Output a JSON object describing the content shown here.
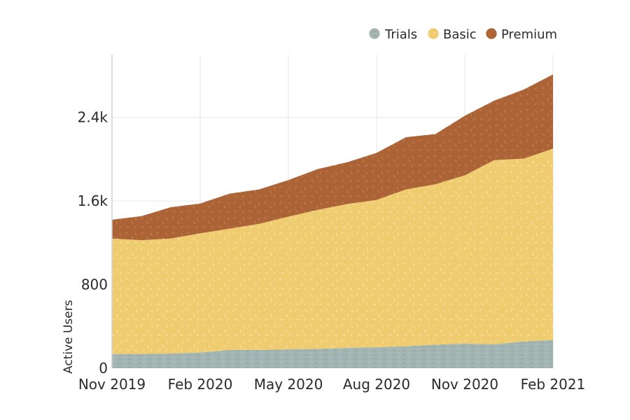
{
  "chart_data": {
    "type": "area",
    "stacked": true,
    "title": "",
    "xlabel": "",
    "ylabel": "Active Users",
    "x": [
      "Nov 2019",
      "Dec 2019",
      "Jan 2020",
      "Feb 2020",
      "Mar 2020",
      "Apr 2020",
      "May 2020",
      "Jun 2020",
      "Jul 2020",
      "Aug 2020",
      "Sep 2020",
      "Oct 2020",
      "Nov 2020",
      "Dec 2020",
      "Jan 2021",
      "Feb 2021"
    ],
    "x_tick_labels": [
      "Nov 2019",
      "Feb 2020",
      "May 2020",
      "Aug 2020",
      "Nov 2020",
      "Feb 2021"
    ],
    "y_tick_labels": [
      "0",
      "800",
      "1.6k",
      "2.4k"
    ],
    "y_ticks": [
      0,
      800,
      1600,
      2400
    ],
    "ylim": [
      0,
      3000
    ],
    "grid": true,
    "legend_position": "top-right",
    "series": [
      {
        "name": "Trials",
        "color": "#a3b5b3",
        "values": [
          135,
          135,
          140,
          150,
          175,
          175,
          180,
          185,
          195,
          200,
          210,
          225,
          235,
          230,
          255,
          270
        ]
      },
      {
        "name": "Basic",
        "color": "#f0cc70",
        "values": [
          1105,
          1090,
          1100,
          1140,
          1160,
          1205,
          1270,
          1330,
          1375,
          1410,
          1500,
          1535,
          1610,
          1760,
          1750,
          1830
        ]
      },
      {
        "name": "Premium",
        "color": "#ac6336",
        "values": [
          180,
          230,
          300,
          285,
          335,
          330,
          350,
          390,
          400,
          450,
          500,
          480,
          570,
          570,
          660,
          710
        ]
      }
    ]
  }
}
